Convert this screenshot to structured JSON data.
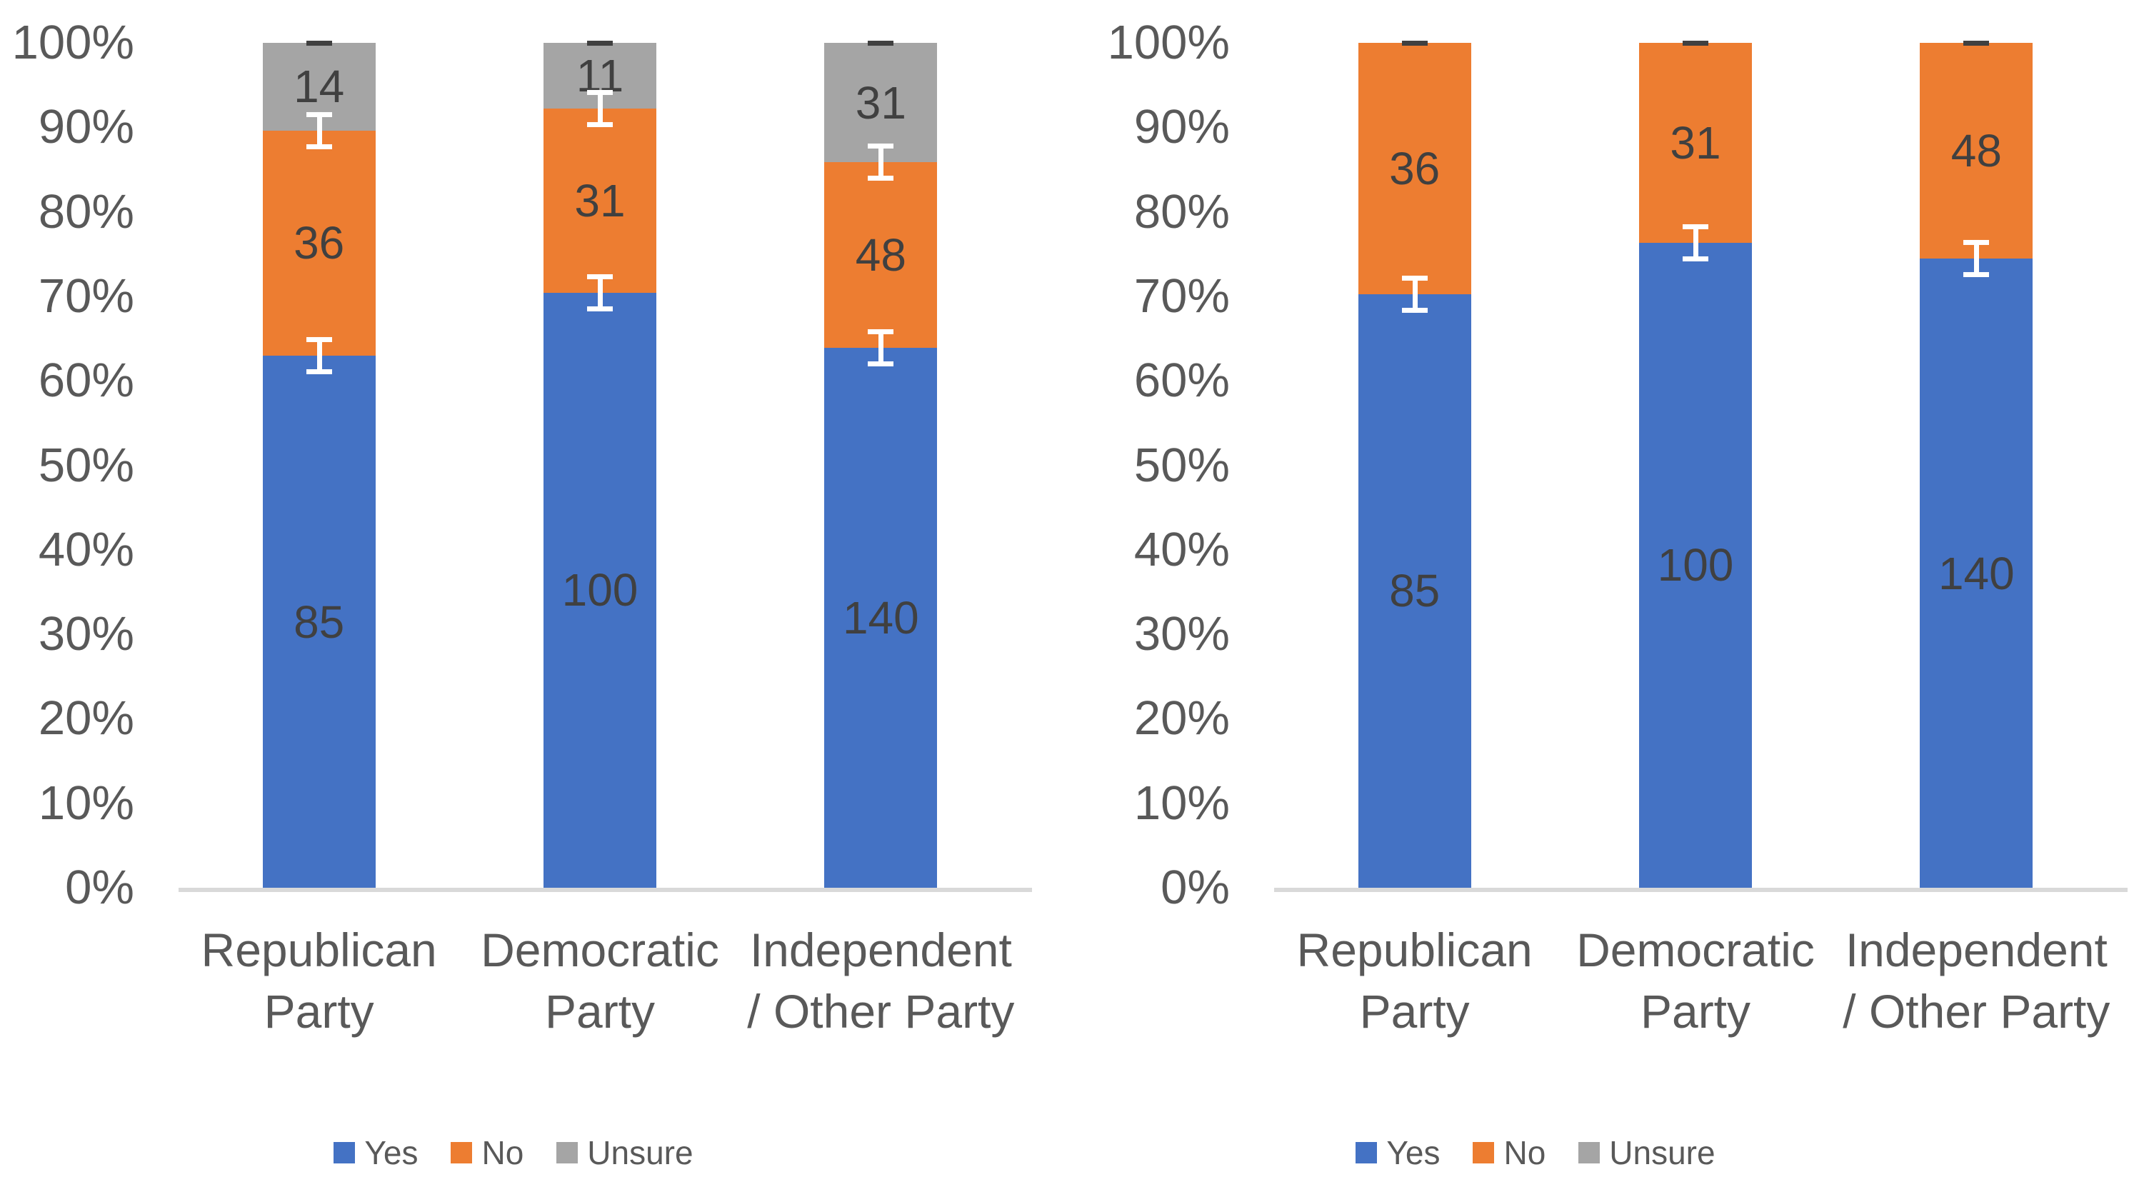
{
  "palette": {
    "yes": "#4472C4",
    "no": "#ED7D31",
    "unsure": "#A5A5A5",
    "axis_line": "#D9D9D9",
    "tick_text": "#595959",
    "data_label_text": "#404040",
    "error_bar_white": "#FFFFFF",
    "error_bar_dark": "#404040"
  },
  "y_axis": {
    "tick_labels": [
      "0%",
      "10%",
      "20%",
      "30%",
      "40%",
      "50%",
      "60%",
      "70%",
      "80%",
      "90%",
      "100%"
    ],
    "min": 0,
    "max": 100
  },
  "legend": {
    "items": [
      {
        "label": "Yes",
        "color_key": "yes"
      },
      {
        "label": "No",
        "color_key": "no"
      },
      {
        "label": "Unsure",
        "color_key": "unsure"
      }
    ]
  },
  "chart_data": [
    {
      "id": "left-stacked-100-all-responses",
      "type": "bar",
      "subtype": "100%-stacked-column",
      "title": "",
      "xlabel": "",
      "ylabel": "",
      "ylim": [
        0,
        100
      ],
      "grid": false,
      "legend_position": "bottom",
      "legend_entries": [
        "Yes",
        "No",
        "Unsure"
      ],
      "categories": [
        "Republican Party",
        "Democratic Party",
        "Independent / Other Party"
      ],
      "category_label_lines": [
        [
          "Republican",
          "Party"
        ],
        [
          "Democratic",
          "Party"
        ],
        [
          "Independent",
          "/ Other Party"
        ]
      ],
      "series": [
        {
          "name": "Yes",
          "color_key": "yes",
          "values": [
            85,
            100,
            140
          ],
          "pct_of_column": [
            62.96,
            70.42,
            63.93
          ]
        },
        {
          "name": "No",
          "color_key": "no",
          "values": [
            36,
            31,
            48
          ],
          "pct_of_column": [
            26.67,
            21.83,
            21.92
          ]
        },
        {
          "name": "Unsure",
          "color_key": "unsure",
          "values": [
            14,
            11,
            31
          ],
          "pct_of_column": [
            10.37,
            7.75,
            14.15
          ]
        }
      ],
      "error_bars": {
        "white_at_pct": [
          [
            62.96,
            89.63
          ],
          [
            70.42,
            92.25
          ],
          [
            63.93,
            85.85
          ]
        ],
        "half_span_pct": 2.2,
        "dark_cap_at_pct": 100
      }
    },
    {
      "id": "right-stacked-100-yes-no-only",
      "type": "bar",
      "subtype": "100%-stacked-column",
      "title": "",
      "xlabel": "",
      "ylabel": "",
      "ylim": [
        0,
        100
      ],
      "grid": false,
      "legend_position": "bottom",
      "legend_entries": [
        "Yes",
        "No",
        "Unsure"
      ],
      "categories": [
        "Republican Party",
        "Democratic Party",
        "Independent / Other Party"
      ],
      "category_label_lines": [
        [
          "Republican",
          "Party"
        ],
        [
          "Democratic",
          "Party"
        ],
        [
          "Independent",
          "/ Other Party"
        ]
      ],
      "series": [
        {
          "name": "Yes",
          "color_key": "yes",
          "values": [
            85,
            100,
            140
          ],
          "pct_of_column": [
            70.25,
            76.34,
            74.47
          ]
        },
        {
          "name": "No",
          "color_key": "no",
          "values": [
            36,
            31,
            48
          ],
          "pct_of_column": [
            29.75,
            23.66,
            25.53
          ]
        }
      ],
      "error_bars": {
        "white_at_pct": [
          [
            70.25
          ],
          [
            76.34
          ],
          [
            74.47
          ]
        ],
        "half_span_pct": 2.2,
        "dark_cap_at_pct": 100
      }
    }
  ]
}
